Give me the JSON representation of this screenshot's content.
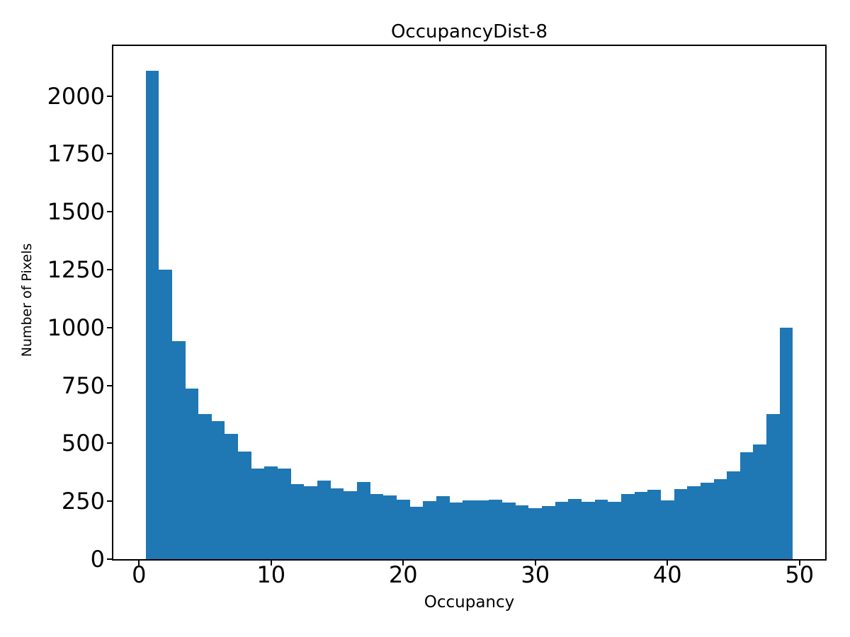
{
  "figure": {
    "title": "OccupancyDist-8",
    "xlabel": "Occupancy",
    "ylabel": "Number of Pixels"
  },
  "chart_data": {
    "type": "bar",
    "subtype": "histogram",
    "title": "OccupancyDist-8",
    "xlabel": "Occupancy",
    "ylabel": "Number of Pixels",
    "bin_start": 0.5,
    "bin_width": 1,
    "bin_centers": [
      1,
      2,
      3,
      4,
      5,
      6,
      7,
      8,
      9,
      10,
      11,
      12,
      13,
      14,
      15,
      16,
      17,
      18,
      19,
      20,
      21,
      22,
      23,
      24,
      25,
      26,
      27,
      28,
      29,
      30,
      31,
      32,
      33,
      34,
      35,
      36,
      37,
      38,
      39,
      40,
      41,
      42,
      43,
      44,
      45,
      46,
      47,
      48,
      49
    ],
    "values": [
      2110,
      1250,
      940,
      735,
      625,
      595,
      540,
      465,
      390,
      400,
      390,
      325,
      315,
      340,
      307,
      293,
      332,
      280,
      275,
      258,
      227,
      250,
      273,
      243,
      253,
      253,
      257,
      243,
      232,
      220,
      230,
      248,
      260,
      248,
      258,
      248,
      281,
      289,
      299,
      253,
      304,
      316,
      331,
      345,
      378,
      462,
      495,
      626,
      1000
    ],
    "xticks": [
      0,
      10,
      20,
      30,
      40,
      50
    ],
    "yticks": [
      0,
      250,
      500,
      750,
      1000,
      1250,
      1500,
      1750,
      2000
    ],
    "xlim": [
      -1.945,
      51.945
    ],
    "ylim": [
      0,
      2215.5
    ],
    "grid": false,
    "legend": null,
    "bar_color": "#1f77b4",
    "axis_color": "#000000",
    "background_color": "#ffffff"
  }
}
